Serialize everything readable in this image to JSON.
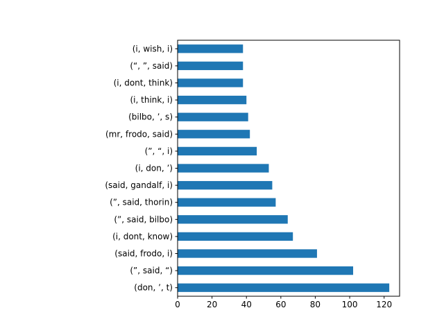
{
  "chart_data": {
    "type": "bar",
    "orientation": "horizontal",
    "title": "",
    "xlabel": "",
    "ylabel": "",
    "categories": [
      "(don, ’, t)",
      "(”, said, “)",
      "(said, frodo, i)",
      "(i, dont, know)",
      "(”, said, bilbo)",
      "(”, said, thorin)",
      "(said, gandalf, i)",
      "(i, don, ’)",
      "(”, “, i)",
      "(mr, frodo, said)",
      "(bilbo, ’, s)",
      "(i, think, i)",
      "(i, dont, think)",
      "(“, ”, said)",
      "(i, wish, i)"
    ],
    "values": [
      123,
      102,
      81,
      67,
      64,
      57,
      55,
      53,
      46,
      42,
      41,
      40,
      38,
      38,
      38
    ],
    "xlim": [
      0,
      129
    ],
    "xticks": [
      0,
      20,
      40,
      60,
      80,
      100,
      120
    ],
    "grid": false,
    "bar_color": "#1f77b4"
  }
}
